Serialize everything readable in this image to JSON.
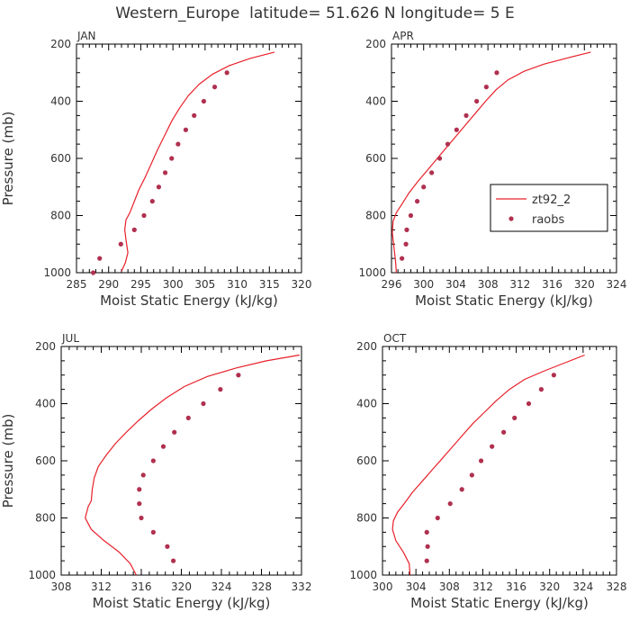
{
  "figure": {
    "title": "Western_Europe  latitude= 51.626 N longitude= 5 E"
  },
  "colors": {
    "model": "#e8202a",
    "obs": "#b0304f",
    "axis": "#000000",
    "text": "#333333"
  },
  "legend": {
    "panel": "APR",
    "placement": "inside-right",
    "entries": [
      {
        "label": "zt92_2",
        "kind": "line"
      },
      {
        "label": "raobs",
        "kind": "marker"
      }
    ]
  },
  "chart_data": [
    {
      "type": "line",
      "panel": "JAN",
      "xlabel": "Moist Static Energy (kJ/kg)",
      "ylabel": "Pressure (mb)",
      "xlim": [
        285,
        320
      ],
      "ylim": [
        1000,
        200
      ],
      "x_ticks": [
        285,
        290,
        295,
        300,
        305,
        310,
        315,
        320
      ],
      "y_ticks": [
        200,
        400,
        600,
        800,
        1000
      ],
      "series": [
        {
          "name": "zt92_2",
          "kind": "line",
          "points": [
            [
              292.0,
              995
            ],
            [
              292.6,
              965
            ],
            [
              293.0,
              930
            ],
            [
              292.7,
              885
            ],
            [
              292.5,
              850
            ],
            [
              292.7,
              815
            ],
            [
              293.3,
              790
            ],
            [
              294.0,
              750
            ],
            [
              294.7,
              710
            ],
            [
              295.6,
              670
            ],
            [
              296.6,
              620
            ],
            [
              297.6,
              570
            ],
            [
              298.7,
              520
            ],
            [
              299.8,
              470
            ],
            [
              301.0,
              425
            ],
            [
              302.4,
              380
            ],
            [
              304.1,
              340
            ],
            [
              306.2,
              305
            ],
            [
              308.8,
              275
            ],
            [
              312.0,
              250
            ],
            [
              315.8,
              228
            ]
          ]
        },
        {
          "name": "raobs",
          "kind": "marker",
          "points": [
            [
              287.6,
              1000
            ],
            [
              288.6,
              950
            ],
            [
              291.9,
              900
            ],
            [
              294.0,
              850
            ],
            [
              295.5,
              800
            ],
            [
              296.8,
              750
            ],
            [
              297.8,
              700
            ],
            [
              298.8,
              650
            ],
            [
              299.8,
              600
            ],
            [
              300.8,
              550
            ],
            [
              302.0,
              500
            ],
            [
              303.3,
              450
            ],
            [
              304.8,
              400
            ],
            [
              306.5,
              350
            ],
            [
              308.4,
              300
            ]
          ]
        }
      ]
    },
    {
      "type": "line",
      "panel": "APR",
      "xlabel": "Moist Static Energy (kJ/kg)",
      "ylabel": "",
      "xlim": [
        296,
        324
      ],
      "ylim": [
        1000,
        200
      ],
      "x_ticks": [
        296,
        300,
        304,
        308,
        312,
        316,
        320,
        324
      ],
      "y_ticks": [
        200,
        400,
        600,
        800,
        1000
      ],
      "series": [
        {
          "name": "zt92_2",
          "kind": "line",
          "points": [
            [
              296.6,
              1000
            ],
            [
              296.5,
              960
            ],
            [
              296.3,
              910
            ],
            [
              296.1,
              860
            ],
            [
              296.2,
              820
            ],
            [
              296.6,
              790
            ],
            [
              297.3,
              760
            ],
            [
              298.2,
              720
            ],
            [
              299.3,
              680
            ],
            [
              300.5,
              640
            ],
            [
              301.7,
              600
            ],
            [
              302.9,
              560
            ],
            [
              304.1,
              520
            ],
            [
              305.3,
              480
            ],
            [
              306.5,
              440
            ],
            [
              307.7,
              400
            ],
            [
              309.0,
              360
            ],
            [
              310.5,
              325
            ],
            [
              312.5,
              295
            ],
            [
              315.0,
              270
            ],
            [
              318.0,
              248
            ],
            [
              320.8,
              228
            ]
          ]
        },
        {
          "name": "raobs",
          "kind": "marker",
          "points": [
            [
              297.3,
              950
            ],
            [
              297.8,
              900
            ],
            [
              297.9,
              850
            ],
            [
              298.4,
              800
            ],
            [
              299.2,
              750
            ],
            [
              300.0,
              700
            ],
            [
              301.0,
              650
            ],
            [
              302.0,
              600
            ],
            [
              303.0,
              550
            ],
            [
              304.1,
              500
            ],
            [
              305.3,
              450
            ],
            [
              306.6,
              400
            ],
            [
              307.8,
              350
            ],
            [
              309.1,
              300
            ]
          ]
        }
      ]
    },
    {
      "type": "line",
      "panel": "JUL",
      "xlabel": "Moist Static Energy (kJ/kg)",
      "ylabel": "Pressure (mb)",
      "xlim": [
        308,
        332
      ],
      "ylim": [
        1000,
        200
      ],
      "x_ticks": [
        308,
        312,
        316,
        320,
        324,
        328,
        332
      ],
      "y_ticks": [
        200,
        400,
        600,
        800,
        1000
      ],
      "series": [
        {
          "name": "zt92_2",
          "kind": "line",
          "points": [
            [
              315.5,
              1000
            ],
            [
              314.9,
              960
            ],
            [
              313.8,
              920
            ],
            [
              312.3,
              880
            ],
            [
              311.0,
              840
            ],
            [
              310.4,
              800
            ],
            [
              310.7,
              760
            ],
            [
              311.0,
              740
            ],
            [
              311.1,
              700
            ],
            [
              311.3,
              660
            ],
            [
              311.7,
              620
            ],
            [
              312.5,
              580
            ],
            [
              313.4,
              540
            ],
            [
              314.5,
              500
            ],
            [
              315.7,
              460
            ],
            [
              317.0,
              420
            ],
            [
              318.5,
              380
            ],
            [
              320.3,
              340
            ],
            [
              322.6,
              305
            ],
            [
              325.5,
              275
            ],
            [
              328.5,
              250
            ],
            [
              331.8,
              230
            ]
          ]
        },
        {
          "name": "raobs",
          "kind": "marker",
          "points": [
            [
              319.2,
              950
            ],
            [
              318.6,
              900
            ],
            [
              317.2,
              850
            ],
            [
              316.0,
              800
            ],
            [
              315.8,
              750
            ],
            [
              315.8,
              700
            ],
            [
              316.2,
              650
            ],
            [
              317.2,
              600
            ],
            [
              318.2,
              550
            ],
            [
              319.3,
              500
            ],
            [
              320.7,
              450
            ],
            [
              322.2,
              400
            ],
            [
              323.9,
              350
            ],
            [
              325.7,
              300
            ]
          ]
        }
      ]
    },
    {
      "type": "line",
      "panel": "OCT",
      "xlabel": "Moist Static Energy (kJ/kg)",
      "ylabel": "",
      "xlim": [
        300,
        328
      ],
      "ylim": [
        1000,
        200
      ],
      "x_ticks": [
        300,
        304,
        308,
        312,
        316,
        320,
        324,
        328
      ],
      "y_ticks": [
        200,
        400,
        600,
        800,
        1000
      ],
      "series": [
        {
          "name": "zt92_2",
          "kind": "line",
          "points": [
            [
              303.3,
              1000
            ],
            [
              303.2,
              960
            ],
            [
              302.5,
              920
            ],
            [
              301.6,
              880
            ],
            [
              301.2,
              840
            ],
            [
              301.3,
              810
            ],
            [
              301.8,
              780
            ],
            [
              302.6,
              750
            ],
            [
              303.6,
              710
            ],
            [
              304.8,
              670
            ],
            [
              306.0,
              630
            ],
            [
              307.2,
              590
            ],
            [
              308.4,
              550
            ],
            [
              309.6,
              510
            ],
            [
              310.8,
              470
            ],
            [
              312.2,
              430
            ],
            [
              313.6,
              390
            ],
            [
              315.2,
              350
            ],
            [
              317.0,
              315
            ],
            [
              319.4,
              285
            ],
            [
              322.0,
              255
            ],
            [
              324.2,
              230
            ]
          ]
        },
        {
          "name": "raobs",
          "kind": "marker",
          "points": [
            [
              305.3,
              950
            ],
            [
              305.4,
              900
            ],
            [
              305.3,
              850
            ],
            [
              306.6,
              800
            ],
            [
              308.1,
              750
            ],
            [
              309.5,
              700
            ],
            [
              310.7,
              650
            ],
            [
              311.8,
              600
            ],
            [
              313.1,
              550
            ],
            [
              314.5,
              500
            ],
            [
              315.8,
              450
            ],
            [
              317.5,
              400
            ],
            [
              319.0,
              350
            ],
            [
              320.5,
              300
            ]
          ]
        }
      ]
    }
  ]
}
